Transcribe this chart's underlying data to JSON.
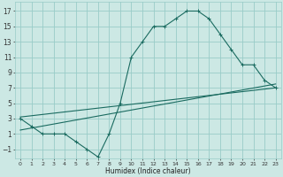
{
  "xlabel": "Humidex (Indice chaleur)",
  "bg_color": "#cce8e4",
  "grid_color": "#99ccc8",
  "line_color": "#1a6b60",
  "xlim": [
    -0.5,
    23.5
  ],
  "ylim": [
    -2.2,
    18.2
  ],
  "xticks": [
    0,
    1,
    2,
    3,
    4,
    5,
    6,
    7,
    8,
    9,
    10,
    11,
    12,
    13,
    14,
    15,
    16,
    17,
    18,
    19,
    20,
    21,
    22,
    23
  ],
  "yticks": [
    -1,
    1,
    3,
    5,
    7,
    9,
    11,
    13,
    15,
    17
  ],
  "curve1_x": [
    0,
    1,
    2,
    3,
    4,
    5,
    6,
    7,
    8,
    9,
    10,
    11,
    12,
    13,
    14,
    15,
    16,
    17,
    18,
    19,
    20,
    21,
    22,
    23
  ],
  "curve1_y": [
    3,
    2,
    1,
    1,
    1,
    0,
    -1,
    -2,
    1,
    5,
    11,
    13,
    15,
    15,
    16,
    17,
    17,
    16,
    14,
    12,
    10,
    10,
    8,
    7
  ],
  "line2_x": [
    0,
    23
  ],
  "line2_y": [
    1.5,
    7.5
  ],
  "line3_x": [
    0,
    23
  ],
  "line3_y": [
    3.2,
    7.0
  ],
  "marker": "+"
}
